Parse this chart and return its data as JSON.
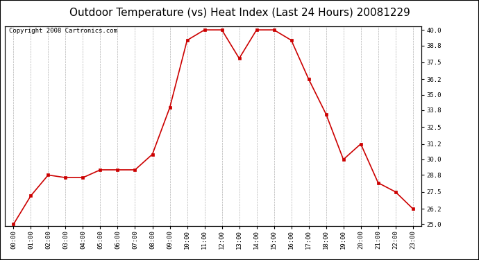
{
  "title": "Outdoor Temperature (vs) Heat Index (Last 24 Hours) 20081229",
  "copyright": "Copyright 2008 Cartronics.com",
  "x_labels": [
    "00:00",
    "01:00",
    "02:00",
    "03:00",
    "04:00",
    "05:00",
    "06:00",
    "07:00",
    "08:00",
    "09:00",
    "10:00",
    "11:00",
    "12:00",
    "13:00",
    "14:00",
    "15:00",
    "16:00",
    "17:00",
    "18:00",
    "19:00",
    "20:00",
    "21:00",
    "22:00",
    "23:00"
  ],
  "y_values": [
    25.0,
    27.2,
    28.8,
    28.6,
    28.6,
    29.2,
    29.2,
    29.2,
    30.4,
    34.0,
    39.2,
    40.0,
    40.0,
    37.8,
    40.0,
    40.0,
    39.2,
    36.2,
    33.5,
    30.0,
    31.2,
    28.2,
    27.5,
    26.2
  ],
  "line_color": "#cc0000",
  "marker": "s",
  "marker_size": 3,
  "bg_color": "#ffffff",
  "grid_color": "#aaaaaa",
  "y_min": 25.0,
  "y_max": 40.0,
  "y_ticks": [
    25.0,
    26.2,
    27.5,
    28.8,
    30.0,
    31.2,
    32.5,
    33.8,
    35.0,
    36.2,
    37.5,
    38.8,
    40.0
  ],
  "title_fontsize": 11,
  "copyright_fontsize": 6.5,
  "tick_fontsize": 6.5
}
